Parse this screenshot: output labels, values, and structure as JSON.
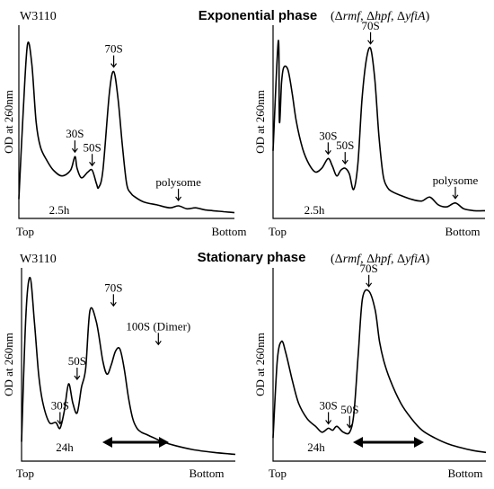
{
  "figure": {
    "top_heading": "Exponential phase",
    "bottom_heading": "Stationary phase"
  },
  "chart_data": [
    {
      "type": "line",
      "panel": "top-left",
      "strain_label": "W3110",
      "strain_label_style": "plain",
      "ylabel": "OD at 260nm",
      "xlabel_left": "Top",
      "xlabel_right": "Bottom",
      "time_label": "2.5h",
      "show_arrow": false,
      "x": [
        0,
        0.02,
        0.04,
        0.06,
        0.08,
        0.1,
        0.13,
        0.16,
        0.2,
        0.24,
        0.26,
        0.27,
        0.29,
        0.32,
        0.34,
        0.36,
        0.37,
        0.39,
        0.42,
        0.44,
        0.46,
        0.48,
        0.5,
        0.52,
        0.54,
        0.58,
        0.64,
        0.7,
        0.74,
        0.78,
        0.82,
        0.86,
        0.9,
        0.95,
        1.0
      ],
      "y": [
        0.1,
        0.55,
        0.9,
        0.8,
        0.5,
        0.37,
        0.3,
        0.25,
        0.22,
        0.25,
        0.32,
        0.26,
        0.21,
        0.24,
        0.25,
        0.18,
        0.16,
        0.25,
        0.65,
        0.76,
        0.62,
        0.38,
        0.18,
        0.13,
        0.11,
        0.085,
        0.07,
        0.055,
        0.065,
        0.05,
        0.055,
        0.045,
        0.04,
        0.035,
        0.03
      ],
      "annotations": [
        {
          "label": "30S",
          "x": 0.26,
          "y": 0.32
        },
        {
          "label": "50S",
          "x": 0.34,
          "y": 0.25
        },
        {
          "label": "70S",
          "x": 0.44,
          "y": 0.76
        },
        {
          "label": "polysome",
          "x": 0.74,
          "y": 0.07
        }
      ]
    },
    {
      "type": "line",
      "panel": "top-right",
      "strain_label": "(Δrmf, Δhpf, ΔyfiA)",
      "strain_label_style": "italic-genes",
      "ylabel": "OD at 260nm",
      "xlabel_left": "Top",
      "xlabel_right": "Bottom",
      "time_label": "2.5h",
      "show_arrow": false,
      "x": [
        0,
        0.025,
        0.03,
        0.04,
        0.05,
        0.07,
        0.09,
        0.11,
        0.14,
        0.17,
        0.2,
        0.23,
        0.26,
        0.28,
        0.3,
        0.32,
        0.34,
        0.36,
        0.38,
        0.4,
        0.42,
        0.44,
        0.46,
        0.48,
        0.5,
        0.52,
        0.54,
        0.56,
        0.6,
        0.65,
        0.7,
        0.74,
        0.78,
        0.82,
        0.86,
        0.9,
        0.95,
        1.0
      ],
      "y": [
        0.35,
        0.92,
        0.5,
        0.7,
        0.78,
        0.77,
        0.65,
        0.5,
        0.36,
        0.28,
        0.24,
        0.26,
        0.31,
        0.27,
        0.22,
        0.25,
        0.26,
        0.23,
        0.15,
        0.28,
        0.62,
        0.82,
        0.88,
        0.72,
        0.42,
        0.22,
        0.16,
        0.14,
        0.12,
        0.1,
        0.09,
        0.11,
        0.07,
        0.06,
        0.08,
        0.05,
        0.04,
        0.04
      ],
      "annotations": [
        {
          "label": "30S",
          "x": 0.26,
          "y": 0.31
        },
        {
          "label": "50S",
          "x": 0.34,
          "y": 0.26
        },
        {
          "label": "70S",
          "x": 0.46,
          "y": 0.88
        },
        {
          "label": "polysome",
          "x": 0.86,
          "y": 0.08
        }
      ]
    },
    {
      "type": "line",
      "panel": "bottom-left",
      "strain_label": "W3110",
      "strain_label_style": "plain",
      "ylabel": "OD at 260nm",
      "xlabel_left": "Top",
      "xlabel_right": "Bottom",
      "time_label": "24h",
      "show_arrow": true,
      "x": [
        0,
        0.02,
        0.04,
        0.06,
        0.08,
        0.1,
        0.13,
        0.16,
        0.18,
        0.2,
        0.22,
        0.24,
        0.26,
        0.28,
        0.3,
        0.32,
        0.35,
        0.38,
        0.4,
        0.42,
        0.44,
        0.46,
        0.48,
        0.5,
        0.52,
        0.54,
        0.56,
        0.58,
        0.6,
        0.62,
        0.66,
        0.72,
        0.8,
        0.9,
        1.0
      ],
      "y": [
        0.1,
        0.75,
        0.95,
        0.72,
        0.45,
        0.3,
        0.2,
        0.2,
        0.17,
        0.26,
        0.4,
        0.3,
        0.25,
        0.38,
        0.48,
        0.78,
        0.72,
        0.52,
        0.45,
        0.5,
        0.57,
        0.58,
        0.48,
        0.33,
        0.22,
        0.17,
        0.15,
        0.14,
        0.13,
        0.12,
        0.1,
        0.08,
        0.06,
        0.045,
        0.035
      ],
      "annotations": [
        {
          "label": "30S",
          "x": 0.18,
          "y": 0.17
        },
        {
          "label": "50S",
          "x": 0.26,
          "y": 0.4
        },
        {
          "label": "70S",
          "x": 0.43,
          "y": 0.78
        },
        {
          "label": "100S (Dimer)",
          "x": 0.64,
          "y": 0.58
        }
      ]
    },
    {
      "type": "line",
      "panel": "bottom-right",
      "strain_label": "(Δrmf, Δhpf, ΔyfiA)",
      "strain_label_style": "italic-genes",
      "ylabel": "OD at 260nm",
      "xlabel_left": "Top",
      "xlabel_right": "Bottom",
      "time_label": "24h",
      "show_arrow": true,
      "x": [
        0,
        0.02,
        0.04,
        0.06,
        0.09,
        0.12,
        0.16,
        0.2,
        0.23,
        0.26,
        0.28,
        0.3,
        0.33,
        0.36,
        0.38,
        0.4,
        0.42,
        0.45,
        0.48,
        0.5,
        0.52,
        0.55,
        0.6,
        0.65,
        0.7,
        0.76,
        0.82,
        0.88,
        0.94,
        1.0
      ],
      "y": [
        0.12,
        0.52,
        0.62,
        0.56,
        0.42,
        0.3,
        0.22,
        0.18,
        0.15,
        0.17,
        0.16,
        0.18,
        0.15,
        0.15,
        0.25,
        0.55,
        0.84,
        0.88,
        0.78,
        0.62,
        0.52,
        0.42,
        0.3,
        0.22,
        0.16,
        0.12,
        0.09,
        0.07,
        0.055,
        0.045
      ],
      "annotations": [
        {
          "label": "30S",
          "x": 0.26,
          "y": 0.17
        },
        {
          "label": "50S",
          "x": 0.36,
          "y": 0.15
        },
        {
          "label": "70S",
          "x": 0.45,
          "y": 0.88
        }
      ]
    }
  ]
}
